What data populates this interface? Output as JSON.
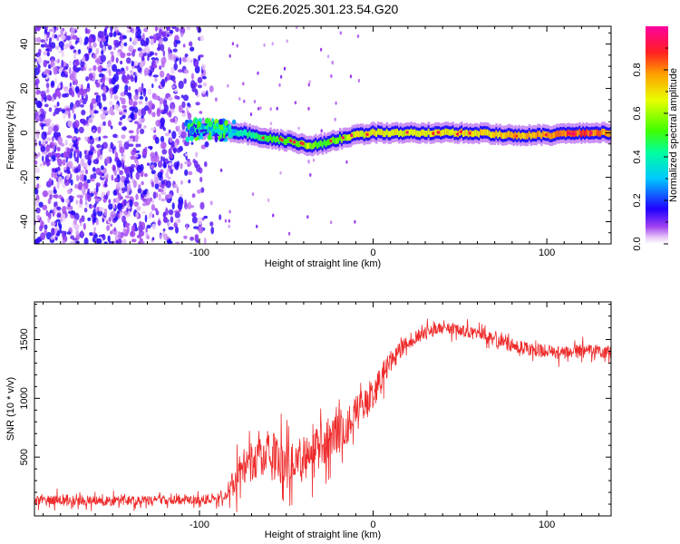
{
  "title": "C2E6.2025.301.23.54.G20",
  "chart_data": [
    {
      "type": "heatmap",
      "title": "C2E6.2025.301.23.54.G20",
      "xlabel": "Height of straight line (km)",
      "ylabel": "Frequency (Hz)",
      "xlim": [
        -195,
        137
      ],
      "ylim": [
        -50,
        48
      ],
      "xticks": [
        -100,
        0,
        100
      ],
      "yticks": [
        -40,
        -20,
        0,
        20,
        40
      ],
      "xtick_labels": [
        "-100",
        "0",
        "100"
      ],
      "ytick_labels": [
        "-40",
        "-20",
        "0",
        "20",
        "40"
      ],
      "colorbar": {
        "label": "Normalized spectral amplitude",
        "range": [
          0,
          1
        ],
        "ticks": [
          0,
          0.2,
          0.4,
          0.6,
          0.8
        ],
        "tick_labels": [
          "0.0",
          "0.2",
          "0.4",
          "0.6",
          "0.8"
        ]
      },
      "noise_region_x": [
        -195,
        -88
      ],
      "signal_track": {
        "x": [
          -105,
          -95,
          -85,
          -75,
          -65,
          -55,
          -45,
          -38,
          -30,
          -20,
          -10,
          0,
          20,
          40,
          60,
          80,
          100,
          120,
          137
        ],
        "freq": [
          1,
          2,
          1,
          0,
          -2,
          -3,
          -4,
          -6,
          -5,
          -3,
          -1,
          0,
          0,
          0,
          0,
          -1,
          -1,
          0,
          0
        ],
        "amplitude": [
          0.5,
          0.45,
          0.4,
          0.45,
          0.5,
          0.55,
          0.55,
          0.65,
          0.55,
          0.6,
          0.7,
          0.75,
          0.7,
          0.75,
          0.75,
          0.8,
          0.85,
          0.9,
          0.85
        ]
      }
    },
    {
      "type": "line",
      "xlabel": "Height of straight line (km)",
      "ylabel": "SNR (10 * v/v)",
      "xlim": [
        -195,
        137
      ],
      "ylim": [
        0,
        1820
      ],
      "xticks": [
        -100,
        0,
        100
      ],
      "yticks": [
        500,
        1000,
        1500
      ],
      "xtick_labels": [
        "-100",
        "0",
        "100"
      ],
      "ytick_labels": [
        "500",
        "1000",
        "1500"
      ],
      "color": "#ee2a2a",
      "series": [
        {
          "name": "SNR",
          "x": [
            -195,
            -180,
            -160,
            -140,
            -120,
            -100,
            -90,
            -82,
            -78,
            -70,
            -60,
            -50,
            -40,
            -30,
            -20,
            -10,
            0,
            10,
            20,
            30,
            40,
            50,
            60,
            70,
            80,
            90,
            100,
            110,
            120,
            130,
            137
          ],
          "y": [
            140,
            140,
            130,
            130,
            130,
            140,
            150,
            180,
            350,
            450,
            550,
            420,
            480,
            600,
            720,
            850,
            1050,
            1300,
            1480,
            1560,
            1600,
            1580,
            1540,
            1500,
            1450,
            1420,
            1400,
            1390,
            1400,
            1400,
            1390
          ],
          "spread": [
            90,
            90,
            80,
            80,
            80,
            80,
            90,
            120,
            300,
            350,
            380,
            380,
            380,
            380,
            350,
            320,
            280,
            220,
            140,
            110,
            100,
            100,
            100,
            110,
            120,
            120,
            120,
            120,
            120,
            110,
            110
          ]
        }
      ]
    }
  ]
}
